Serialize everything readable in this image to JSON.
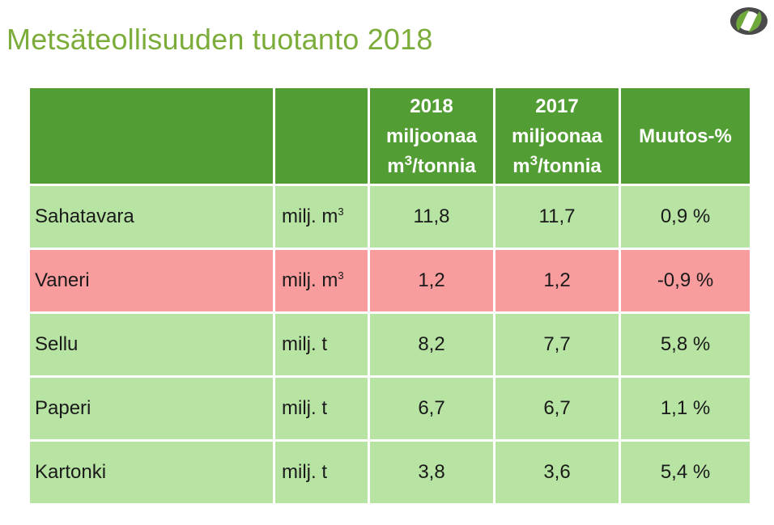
{
  "title": "Metsäteollisuuden tuotanto 2018",
  "colors": {
    "title": "#7cac3a",
    "header_bg": "#539e34",
    "row_up": "#b7e3a3",
    "row_down": "#f89c9d",
    "logo_green": "#6ea83a",
    "logo_gray": "#4a4a4a"
  },
  "logo": {
    "icon": "leaf-circle-logo-icon"
  },
  "header": {
    "col1": "",
    "col2": "",
    "y2018_year": "2018",
    "y2018_unit_a": "miljoonaa",
    "y2018_unit_m": "m",
    "y2018_unit_sup": "3",
    "y2018_unit_b": "/tonnia",
    "y2017_year": "2017",
    "y2017_unit_a": "miljoonaa",
    "y2017_unit_m": "m",
    "y2017_unit_sup": "3",
    "y2017_unit_b": "/tonnia",
    "change": "Muutos-%"
  },
  "rows": [
    {
      "name": "Sahatavara",
      "unit": "milj. m",
      "unit_sup": "3",
      "v2018": "11,8",
      "v2017": "11,7",
      "change": "0,9 %",
      "trend": "up"
    },
    {
      "name": "Vaneri",
      "unit": "milj. m",
      "unit_sup": "3",
      "v2018": "1,2",
      "v2017": "1,2",
      "change": "-0,9 %",
      "trend": "down"
    },
    {
      "name": "Sellu",
      "unit": "milj. t",
      "unit_sup": "",
      "v2018": "8,2",
      "v2017": "7,7",
      "change": "5,8 %",
      "trend": "up"
    },
    {
      "name": "Paperi",
      "unit": "milj. t",
      "unit_sup": "",
      "v2018": "6,7",
      "v2017": "6,7",
      "change": "1,1 %",
      "trend": "up"
    },
    {
      "name": "Kartonki",
      "unit": "milj. t",
      "unit_sup": "",
      "v2018": "3,8",
      "v2017": "3,6",
      "change": "5,4 %",
      "trend": "up"
    }
  ]
}
